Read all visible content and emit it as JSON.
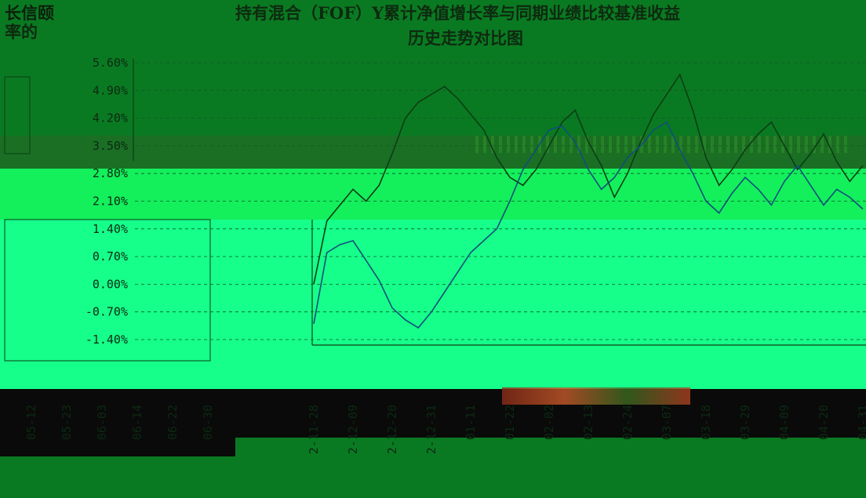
{
  "title": {
    "line1_left": "长信颐",
    "line1_right": "持有混合（FOF）Y累计净值增长率与同期业绩比较基准收益",
    "line1_tail": "率的",
    "line2": "历史走势对比图"
  },
  "colors": {
    "background_dark": "#0a7a22",
    "band_bright": "#12ff6a",
    "band_mid": "#1ec83c",
    "band_black": "#0a0a0a",
    "fund_line": "#0b3d14",
    "benchmark_line": "#0f4f7a",
    "grid": "#0d5a22"
  },
  "chart_data": {
    "type": "line",
    "title": "长信颐…持有混合（FOF）Y累计净值增长率与同期业绩比较基准收益率的历史走势对比图",
    "y_ticks": [
      "5.60%",
      "4.90%",
      "4.20%",
      "3.50%",
      "2.80%",
      "2.10%",
      "1.40%",
      "0.70%",
      "0.00%",
      "-0.70%",
      "-1.40%"
    ],
    "ylim": [
      -1.4,
      5.6
    ],
    "x_ticks_left_panel": [
      "05-12",
      "05-23",
      "06-03",
      "06-14",
      "06-22",
      "06-30"
    ],
    "x_ticks_right_panel": [
      "2-11-28",
      "2-12-09",
      "2-12-20",
      "2-12-31",
      "01-11",
      "01-22",
      "02-02",
      "02-13",
      "02-24",
      "03-07",
      "03-18",
      "03-29",
      "04-09",
      "04-20",
      "04-31"
    ],
    "series": [
      {
        "values": [
          0.0,
          1.6,
          2.0,
          2.4,
          2.1,
          2.5,
          3.3,
          4.2,
          4.6,
          4.8,
          5.0,
          4.7,
          4.3,
          3.9,
          3.2,
          2.7,
          2.5,
          2.9,
          3.5,
          4.1,
          4.4,
          3.6,
          3.0,
          2.2,
          2.8,
          3.6,
          4.3,
          4.8,
          5.3,
          4.4,
          3.2,
          2.5,
          2.9,
          3.4,
          3.8,
          4.1,
          3.5,
          2.9,
          3.3,
          3.8,
          3.1,
          2.6,
          3.0
        ]
      },
      {
        "values": [
          -1.0,
          0.8,
          1.0,
          1.1,
          0.6,
          0.1,
          -0.6,
          -0.9,
          -1.1,
          -0.7,
          -0.2,
          0.3,
          0.8,
          1.1,
          1.4,
          2.1,
          2.9,
          3.4,
          3.9,
          4.0,
          3.6,
          2.9,
          2.4,
          2.7,
          3.2,
          3.5,
          3.9,
          4.1,
          3.4,
          2.8,
          2.1,
          1.8,
          2.3,
          2.7,
          2.4,
          2.0,
          2.6,
          3.0,
          2.5,
          2.0,
          2.4,
          2.2,
          1.9
        ]
      }
    ]
  }
}
